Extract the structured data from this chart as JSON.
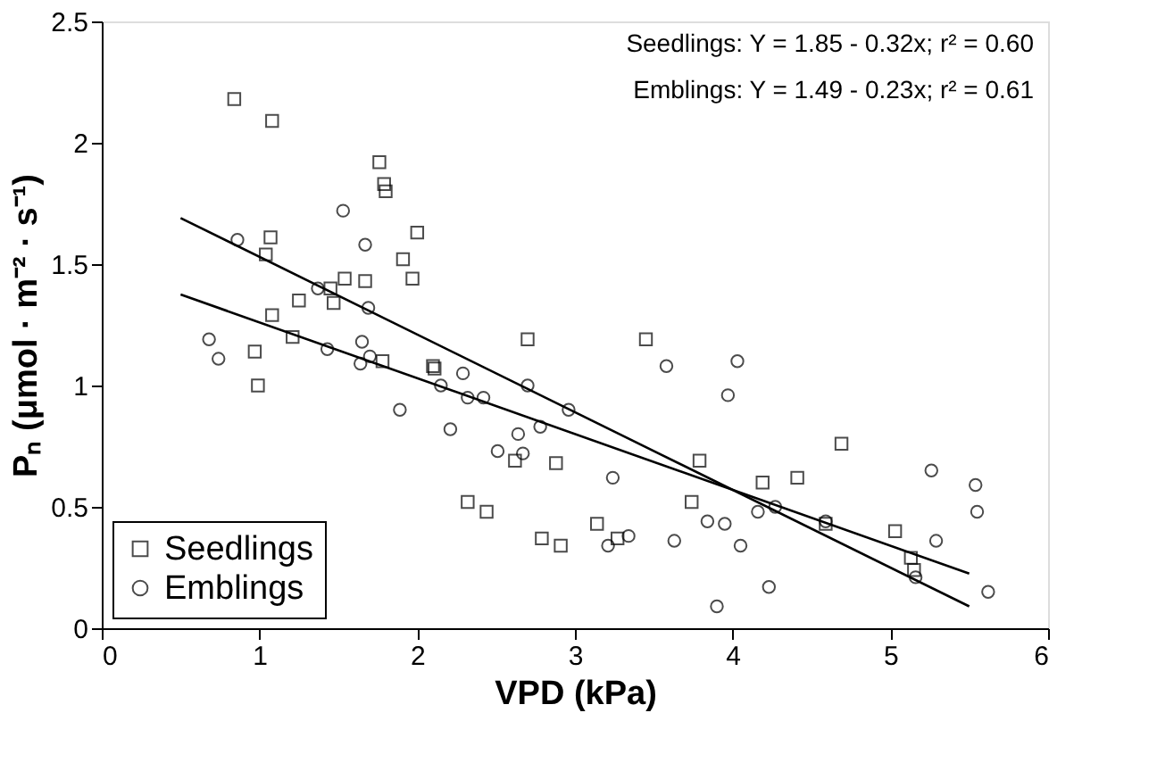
{
  "chart_data": {
    "type": "scatter",
    "xlabel": "VPD (kPa)",
    "ylabel": "Pₙ (μmol · m⁻² · s⁻¹)",
    "xlim": [
      0,
      6
    ],
    "xticks": [
      0,
      1,
      2,
      3,
      4,
      5,
      6
    ],
    "ylim": [
      0,
      2.5
    ],
    "yticks": [
      0,
      0.5,
      1,
      1.5,
      2,
      2.5
    ],
    "grid": false,
    "legend": "bottom left",
    "annotations": [
      "Seedlings: Y = 1.85 - 0.32x; r² = 0.60",
      "Emblings: Y = 1.49 - 0.23x; r² = 0.61"
    ],
    "series": [
      {
        "name": "Seedlings",
        "marker": "square",
        "color": "#000000",
        "x": [
          0.84,
          1.08,
          1.76,
          1.79,
          1.8,
          2.0,
          1.07,
          1.04,
          1.91,
          1.54,
          1.67,
          1.97,
          1.45,
          1.25,
          1.47,
          1.08,
          0.97,
          1.78,
          0.99,
          2.1,
          1.21,
          2.7,
          3.45,
          2.11,
          2.62,
          2.88,
          2.32,
          2.44,
          3.14,
          2.79,
          2.91,
          3.79,
          3.74,
          3.27,
          4.19,
          4.41,
          4.69,
          4.59,
          5.03,
          5.13,
          5.15
        ],
        "values": [
          2.18,
          2.09,
          1.92,
          1.83,
          1.8,
          1.63,
          1.61,
          1.54,
          1.52,
          1.44,
          1.43,
          1.44,
          1.4,
          1.35,
          1.34,
          1.29,
          1.14,
          1.1,
          1.0,
          1.08,
          1.2,
          1.19,
          1.19,
          1.07,
          0.69,
          0.68,
          0.52,
          0.48,
          0.43,
          0.37,
          0.34,
          0.69,
          0.52,
          0.37,
          0.6,
          0.62,
          0.76,
          0.43,
          0.4,
          0.29,
          0.24
        ]
      },
      {
        "name": "Emblings",
        "marker": "circle",
        "color": "#000000",
        "x": [
          1.53,
          0.86,
          1.67,
          1.37,
          1.69,
          0.68,
          0.74,
          1.43,
          1.65,
          1.64,
          1.7,
          1.89,
          3.58,
          2.29,
          2.15,
          2.32,
          2.42,
          2.7,
          2.96,
          2.21,
          2.78,
          2.64,
          2.51,
          2.67,
          3.24,
          3.34,
          3.21,
          3.63,
          3.84,
          4.03,
          3.97,
          3.95,
          4.05,
          4.16,
          4.27,
          4.23,
          3.9,
          4.59,
          5.26,
          5.29,
          5.54,
          5.55,
          5.62,
          5.16
        ],
        "values": [
          1.72,
          1.6,
          1.58,
          1.4,
          1.32,
          1.19,
          1.11,
          1.15,
          1.18,
          1.09,
          1.12,
          0.9,
          1.08,
          1.05,
          1.0,
          0.95,
          0.95,
          1.0,
          0.9,
          0.82,
          0.83,
          0.8,
          0.73,
          0.72,
          0.62,
          0.38,
          0.34,
          0.36,
          0.44,
          1.1,
          0.96,
          0.43,
          0.34,
          0.48,
          0.5,
          0.17,
          0.09,
          0.44,
          0.65,
          0.36,
          0.59,
          0.48,
          0.15,
          0.21
        ]
      },
      {
        "type": "line",
        "color": "#000000",
        "line_style": "solid",
        "x": [
          0.5,
          5.5
        ],
        "values": [
          1.69,
          0.09
        ]
      },
      {
        "type": "line",
        "color": "#000000",
        "line_style": "solid",
        "x": [
          0.5,
          5.5
        ],
        "values": [
          1.375,
          0.225
        ]
      }
    ]
  }
}
